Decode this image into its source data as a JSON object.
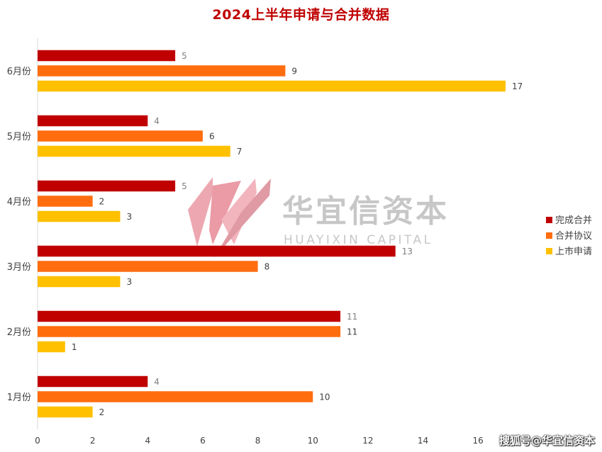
{
  "chart_data": {
    "type": "bar",
    "orientation": "horizontal",
    "title": "2024上半年申请与合并数据",
    "categories": [
      "1月份",
      "2月份",
      "3月份",
      "4月份",
      "5月份",
      "6月份"
    ],
    "series": [
      {
        "name": "完成合并",
        "color": "#c00000",
        "values": [
          4,
          11,
          13,
          5,
          4,
          5
        ]
      },
      {
        "name": "合并协议",
        "color": "#ff6d0f",
        "values": [
          10,
          11,
          8,
          2,
          6,
          9
        ]
      },
      {
        "name": "上市申请",
        "color": "#ffc000",
        "values": [
          2,
          1,
          3,
          3,
          7,
          17
        ]
      }
    ],
    "xlim": [
      0,
      17
    ],
    "x_ticks": [
      0,
      2,
      4,
      6,
      8,
      10,
      12,
      14,
      16
    ],
    "legend_position": "right",
    "grid": false
  },
  "watermark": {
    "brand_cn": "华宜信资本",
    "brand_en": "HUAYIXIN CAPITAL",
    "source": "搜狐号@华宜信资本"
  }
}
